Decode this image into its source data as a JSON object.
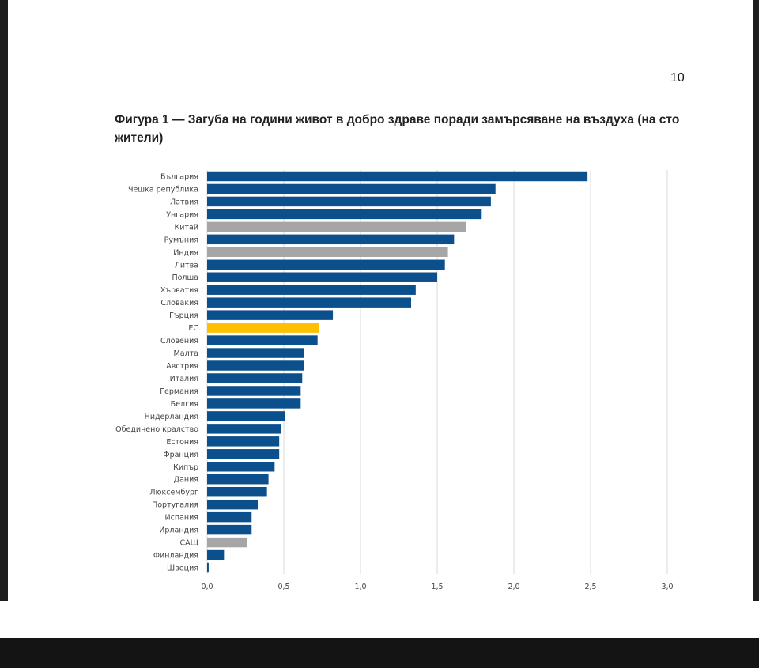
{
  "page": {
    "number": "10"
  },
  "figure": {
    "title": "Фигура 1 — Загуба на години живот в добро здраве поради замърсяване на въздуха (на сто жители)"
  },
  "colors": {
    "default": "#0b4f8c",
    "highlight": "#ffc000",
    "comparison": "#a6a6a6",
    "grid": "#d9d9d9"
  },
  "chart_data": {
    "type": "bar",
    "orientation": "horizontal",
    "title": "",
    "xlabel": "",
    "ylabel": "",
    "xlim": [
      0,
      3
    ],
    "grid": true,
    "x_ticks": [
      0,
      0.5,
      1,
      1.5,
      2,
      2.5,
      3
    ],
    "x_tick_labels": [
      "0,0",
      "0,5",
      "1,0",
      "1,5",
      "2,0",
      "2,5",
      "3,0"
    ],
    "categories": [
      "България",
      "Чешка република",
      "Латвия",
      "Унгария",
      "Китай",
      "Румъния",
      "Индия",
      "Литва",
      "Полша",
      "Хърватия",
      "Словакия",
      "Гърция",
      "ЕС",
      "Словения",
      "Малта",
      "Австрия",
      "Италия",
      "Германия",
      "Белгия",
      "Нидерландия",
      "Обединено кралство",
      "Естония",
      "Франция",
      "Кипър",
      "Дания",
      "Люксембург",
      "Португалия",
      "Испания",
      "Ирландия",
      "САЩ",
      "Финландия",
      "Швеция"
    ],
    "values": [
      2.48,
      1.88,
      1.85,
      1.79,
      1.69,
      1.61,
      1.57,
      1.55,
      1.5,
      1.36,
      1.33,
      0.82,
      0.73,
      0.72,
      0.63,
      0.63,
      0.62,
      0.61,
      0.61,
      0.51,
      0.48,
      0.47,
      0.47,
      0.44,
      0.4,
      0.39,
      0.33,
      0.29,
      0.29,
      0.26,
      0.11,
      0.01
    ],
    "bar_colors": [
      "default",
      "default",
      "default",
      "default",
      "comparison",
      "default",
      "comparison",
      "default",
      "default",
      "default",
      "default",
      "default",
      "highlight",
      "default",
      "default",
      "default",
      "default",
      "default",
      "default",
      "default",
      "default",
      "default",
      "default",
      "default",
      "default",
      "default",
      "default",
      "default",
      "default",
      "comparison",
      "default",
      "default"
    ]
  }
}
